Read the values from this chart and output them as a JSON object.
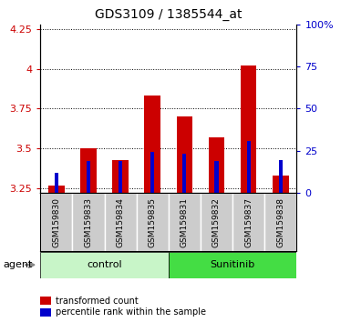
{
  "title": "GDS3109 / 1385544_at",
  "samples": [
    "GSM159830",
    "GSM159833",
    "GSM159834",
    "GSM159835",
    "GSM159831",
    "GSM159832",
    "GSM159837",
    "GSM159838"
  ],
  "red_values": [
    3.27,
    3.5,
    3.43,
    3.83,
    3.7,
    3.57,
    4.02,
    3.33
  ],
  "blue_values": [
    3.35,
    3.42,
    3.42,
    3.48,
    3.47,
    3.42,
    3.55,
    3.43
  ],
  "red_base": 3.22,
  "ylim_left": [
    3.22,
    4.28
  ],
  "ylim_right": [
    0,
    100
  ],
  "yticks_left": [
    3.25,
    3.5,
    3.75,
    4.0,
    4.25
  ],
  "yticks_right": [
    0,
    25,
    50,
    75,
    100
  ],
  "ytick_labels_left": [
    "3.25",
    "3.5",
    "3.75",
    "4",
    "4.25"
  ],
  "ytick_labels_right": [
    "0",
    "25",
    "50",
    "75",
    "100%"
  ],
  "groups": [
    {
      "label": "control",
      "indices": [
        0,
        1,
        2,
        3
      ],
      "color": "#c8f5c8"
    },
    {
      "label": "Sunitinib",
      "indices": [
        4,
        5,
        6,
        7
      ],
      "color": "#44dd44"
    }
  ],
  "group_label": "agent",
  "red_color": "#cc0000",
  "blue_color": "#0000cc",
  "bar_width": 0.5,
  "blue_bar_width": 0.12,
  "background_color": "#ffffff",
  "plot_bg_color": "#ffffff",
  "tick_label_bg": "#cccccc",
  "grid_color": "#000000",
  "legend_items": [
    "transformed count",
    "percentile rank within the sample"
  ]
}
